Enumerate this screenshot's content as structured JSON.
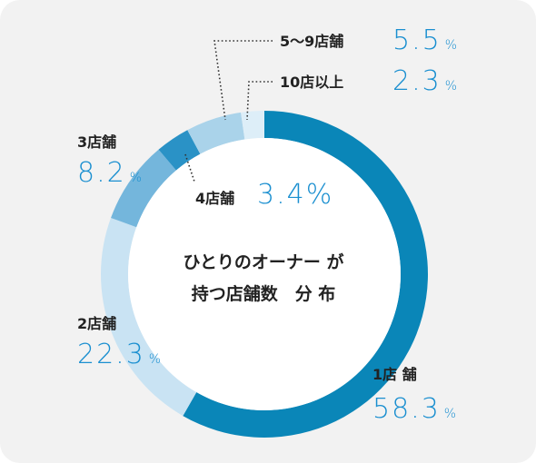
{
  "chart_data": {
    "type": "donut",
    "title_lines": [
      "ひとりのオーナー が",
      "持つ店舗数　分 布"
    ],
    "categories": [
      "1店 舗",
      "2店舗",
      "3店舗",
      "4店舗",
      "5〜9店舗",
      "10店以上"
    ],
    "values": [
      58.3,
      22.3,
      8.2,
      3.4,
      5.5,
      2.3
    ],
    "unit": "%",
    "colors": [
      "#0a86b8",
      "#c9e3f3",
      "#74b6dc",
      "#2a92c6",
      "#aad3ea",
      "#ddeef8"
    ]
  }
}
